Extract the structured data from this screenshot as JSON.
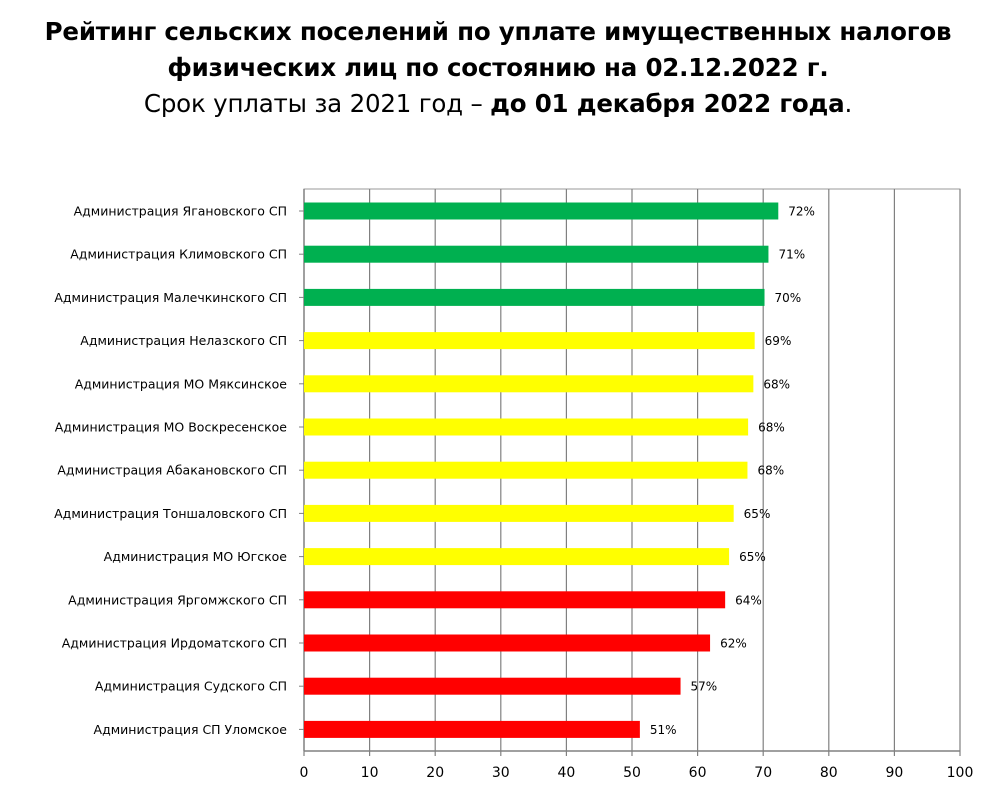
{
  "title": {
    "line1": "Рейтинг сельских поселений по уплате имущественных налогов",
    "line2": "физических лиц по состоянию на 02.12.2022 г.",
    "line3_prefix": "Срок уплаты за 2021 год – ",
    "line3_bold": "до 01 декабря 2022 года",
    "line3_suffix": "."
  },
  "chart_data": {
    "type": "bar",
    "orientation": "horizontal",
    "categories": [
      "Администрация Ягановского СП",
      "Администрация Климовского СП",
      "Администрация Малечкинского СП",
      "Администрация Нелазского СП",
      "Администрация МО Мяксинское",
      "Администрация МО Воскресенское",
      "Администрация Абакановского СП",
      "Администрация Тоншаловского СП",
      "Администрация МО Югское",
      "Администрация Яргомжского СП",
      "Администрация Ирдоматского СП",
      "Администрация Судского СП",
      "Администрация СП Уломское"
    ],
    "values": [
      72.3,
      70.8,
      70.2,
      68.7,
      68.5,
      67.7,
      67.6,
      65.5,
      64.8,
      64.2,
      61.9,
      57.4,
      51.2
    ],
    "value_labels": [
      "72%",
      "71%",
      "70%",
      "69%",
      "68%",
      "68%",
      "68%",
      "65%",
      "65%",
      "64%",
      "62%",
      "57%",
      "51%"
    ],
    "bar_colors": [
      "#00b050",
      "#00b050",
      "#00b050",
      "#ffff00",
      "#ffff00",
      "#ffff00",
      "#ffff00",
      "#ffff00",
      "#ffff00",
      "#ff0000",
      "#ff0000",
      "#ff0000",
      "#ff0000"
    ],
    "xlim": [
      0,
      100
    ],
    "xticks": [
      0,
      10,
      20,
      30,
      40,
      50,
      60,
      70,
      80,
      90,
      100
    ],
    "grid": true,
    "legend": false
  }
}
